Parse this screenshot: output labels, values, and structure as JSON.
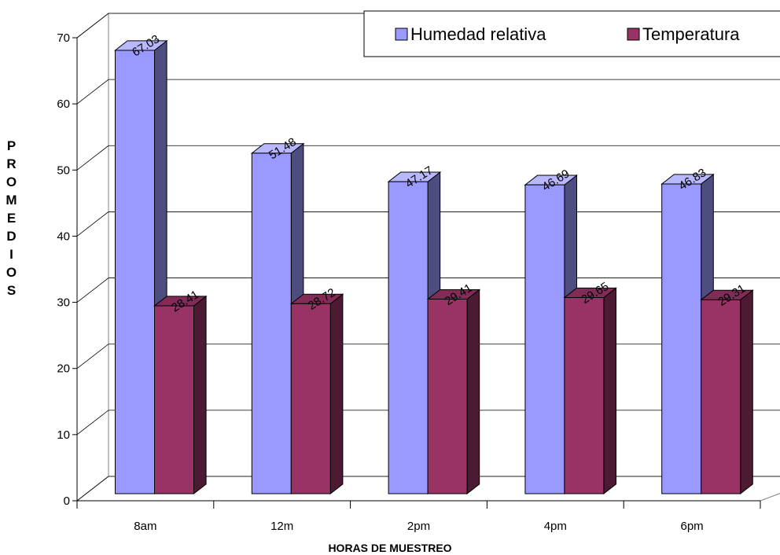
{
  "chart_data": {
    "type": "bar3d",
    "y_label": "PROMEDIOS",
    "x_label": "HORAS DE MUESTREO",
    "categories": [
      "8am",
      "12m",
      "2pm",
      "4pm",
      "6pm"
    ],
    "series": [
      {
        "name": "Humedad relativa",
        "color": "#9999ff",
        "values": [
          67.03,
          51.48,
          47.17,
          46.69,
          46.83
        ]
      },
      {
        "name": "Temperatura",
        "color": "#993366",
        "values": [
          28.41,
          28.72,
          29.41,
          29.65,
          29.31
        ]
      }
    ],
    "ylim": [
      0,
      70
    ],
    "yticks": [
      0,
      10,
      20,
      30,
      40,
      50,
      60,
      70
    ],
    "grid": true,
    "legend": "top-right"
  }
}
